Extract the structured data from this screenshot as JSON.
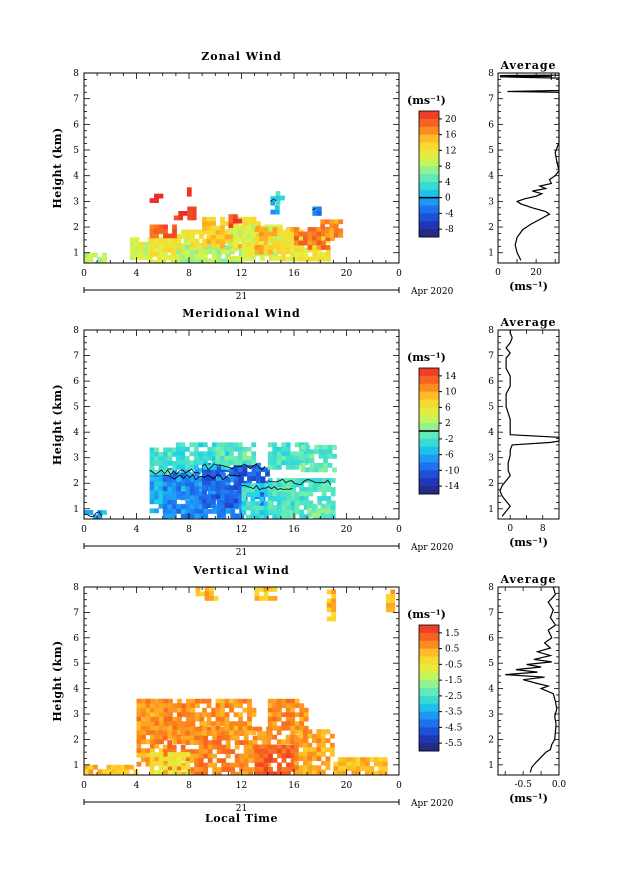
{
  "figure": {
    "date_label": "Apr 2020",
    "day_label": "21",
    "xlabel": "Local Time"
  },
  "chart_data": [
    {
      "type": "heatmap",
      "title": "Zonal Wind",
      "ylabel": "Height (km)",
      "xticks": [
        "0",
        "4",
        "8",
        "12",
        "16",
        "20",
        "0"
      ],
      "xlim": [
        0,
        24
      ],
      "ylim": [
        0.6,
        8
      ],
      "yticks": [
        "1",
        "2",
        "3",
        "4",
        "5",
        "6",
        "7",
        "8"
      ],
      "colorbar": {
        "unit": "(ms⁻¹)",
        "ticks": [
          "20",
          "16",
          "12",
          "8",
          "4",
          "0",
          "-4",
          "-8"
        ],
        "vmin": -10,
        "vmax": 22,
        "contour_level": 0
      },
      "profile": {
        "title": "Average",
        "xlabel": "(ms⁻¹)",
        "xticks": [
          "0",
          "20"
        ],
        "xlim": [
          0,
          32
        ],
        "points": [
          [
            12,
            0.7
          ],
          [
            10,
            1.0
          ],
          [
            9,
            1.3
          ],
          [
            10,
            1.6
          ],
          [
            13,
            1.9
          ],
          [
            17,
            2.1
          ],
          [
            22,
            2.3
          ],
          [
            27,
            2.5
          ],
          [
            25,
            2.6
          ],
          [
            18,
            2.75
          ],
          [
            12,
            2.9
          ],
          [
            10,
            3.0
          ],
          [
            14,
            3.1
          ],
          [
            20,
            3.2
          ],
          [
            23,
            3.3
          ],
          [
            18,
            3.4
          ],
          [
            25,
            3.5
          ],
          [
            22,
            3.6
          ],
          [
            28,
            3.7
          ],
          [
            27,
            3.85
          ],
          [
            30,
            4.0
          ],
          [
            32,
            4.2
          ],
          [
            31,
            4.5
          ],
          [
            30,
            4.9
          ],
          [
            32,
            5.3
          ],
          [
            32,
            6.5
          ],
          [
            32,
            7.25
          ],
          [
            5,
            7.28
          ],
          [
            32,
            7.32
          ],
          [
            32,
            7.8
          ],
          [
            1,
            7.85
          ],
          [
            28,
            7.87
          ],
          [
            1,
            7.9
          ],
          [
            32,
            7.92
          ],
          [
            32,
            8.0
          ]
        ],
        "markers": [
          {
            "x": 28,
            "y": 7.85
          }
        ]
      },
      "regions": [
        {
          "x": [
            0,
            1.5
          ],
          "y": [
            0.6,
            1.0
          ],
          "v": 8
        },
        {
          "x": [
            3.5,
            8
          ],
          "y": [
            0.6,
            1.6
          ],
          "v": 10
        },
        {
          "x": [
            5,
            11
          ],
          "y": [
            1.0,
            1.9
          ],
          "v": 12
        },
        {
          "x": [
            7,
            12
          ],
          "y": [
            0.6,
            1.3
          ],
          "v": 8
        },
        {
          "x": [
            9,
            13.5
          ],
          "y": [
            1.2,
            2.4
          ],
          "v": 14
        },
        {
          "x": [
            11,
            15
          ],
          "y": [
            0.8,
            2.1
          ],
          "v": 10
        },
        {
          "x": [
            13,
            16.5
          ],
          "y": [
            1.0,
            2.0
          ],
          "v": 15
        },
        {
          "x": [
            15,
            18.5
          ],
          "y": [
            0.8,
            1.9
          ],
          "v": 12
        },
        {
          "x": [
            16,
            19
          ],
          "y": [
            1.2,
            2.0
          ],
          "v": 18
        },
        {
          "x": [
            18,
            19.5
          ],
          "y": [
            1.6,
            2.3
          ],
          "v": 17
        },
        {
          "x": [
            5,
            7
          ],
          "y": [
            1.7,
            2.1
          ],
          "v": 19
        },
        {
          "x": [
            6.5,
            8.5
          ],
          "y": [
            2.3,
            2.8
          ],
          "v": 22
        },
        {
          "x": [
            5,
            6
          ],
          "y": [
            3.0,
            3.3
          ],
          "v": 22
        },
        {
          "x": [
            7.5,
            8
          ],
          "y": [
            3.35,
            3.55
          ],
          "v": 22
        },
        {
          "x": [
            11,
            12
          ],
          "y": [
            2.1,
            2.5
          ],
          "v": 20
        },
        {
          "x": [
            14.2,
            14.7
          ],
          "y": [
            2.5,
            3.2
          ],
          "v": 0
        },
        {
          "x": [
            17.4,
            17.8
          ],
          "y": [
            2.5,
            2.8
          ],
          "v": -3
        },
        {
          "x": [
            14.6,
            15
          ],
          "y": [
            3.0,
            3.4
          ],
          "v": 3
        }
      ]
    },
    {
      "type": "heatmap",
      "title": "Meridional Wind",
      "ylabel": "Height (km)",
      "xticks": [
        "0",
        "4",
        "8",
        "12",
        "16",
        "20",
        "0"
      ],
      "xlim": [
        0,
        24
      ],
      "ylim": [
        0.6,
        8
      ],
      "yticks": [
        "1",
        "2",
        "3",
        "4",
        "5",
        "6",
        "7",
        "8"
      ],
      "colorbar": {
        "unit": "(ms⁻¹)",
        "ticks": [
          "14",
          "10",
          "6",
          "2",
          "-2",
          "-6",
          "-10",
          "-14"
        ],
        "vmin": -16,
        "vmax": 16,
        "contour_level": 0
      },
      "profile": {
        "title": "Average",
        "xlabel": "(ms⁻¹)",
        "xticks": [
          "0",
          "8"
        ],
        "xlim": [
          -3,
          12
        ],
        "points": [
          [
            -2,
            0.7
          ],
          [
            -1,
            0.9
          ],
          [
            0,
            1.1
          ],
          [
            -1,
            1.3
          ],
          [
            -2,
            1.5
          ],
          [
            -2.5,
            1.7
          ],
          [
            -2,
            1.9
          ],
          [
            -1,
            2.1
          ],
          [
            0,
            2.3
          ],
          [
            -0.5,
            2.5
          ],
          [
            -0.5,
            2.8
          ],
          [
            0,
            3.1
          ],
          [
            0,
            3.3
          ],
          [
            0.5,
            3.5
          ],
          [
            10,
            3.6
          ],
          [
            12,
            3.65
          ],
          [
            12,
            3.8
          ],
          [
            0,
            3.9
          ],
          [
            0,
            4.5
          ],
          [
            -1,
            5.0
          ],
          [
            -1,
            5.5
          ],
          [
            0,
            5.8
          ],
          [
            0,
            6.2
          ],
          [
            -1,
            6.5
          ],
          [
            -1,
            6.9
          ],
          [
            0,
            7.1
          ],
          [
            -1,
            7.3
          ],
          [
            0,
            7.5
          ],
          [
            0.5,
            7.7
          ],
          [
            0,
            7.9
          ],
          [
            0,
            8.0
          ]
        ],
        "markers": []
      },
      "regions": [
        {
          "x": [
            0,
            1.5
          ],
          "y": [
            0.6,
            0.95
          ],
          "v": -6
        },
        {
          "x": [
            5,
            9
          ],
          "y": [
            1.0,
            2.6
          ],
          "v": -6
        },
        {
          "x": [
            6,
            12
          ],
          "y": [
            0.6,
            2.4
          ],
          "v": -8
        },
        {
          "x": [
            9,
            14
          ],
          "y": [
            1.2,
            2.8
          ],
          "v": -10
        },
        {
          "x": [
            12,
            16
          ],
          "y": [
            0.6,
            2.0
          ],
          "v": -3
        },
        {
          "x": [
            14,
            19
          ],
          "y": [
            0.6,
            2.2
          ],
          "v": -2
        },
        {
          "x": [
            5,
            7
          ],
          "y": [
            2.4,
            3.4
          ],
          "v": -2
        },
        {
          "x": [
            7,
            11
          ],
          "y": [
            2.6,
            3.6
          ],
          "v": -3
        },
        {
          "x": [
            10,
            13
          ],
          "y": [
            2.8,
            3.6
          ],
          "v": -1
        },
        {
          "x": [
            14,
            17
          ],
          "y": [
            2.6,
            3.6
          ],
          "v": -2
        },
        {
          "x": [
            16.5,
            19
          ],
          "y": [
            2.5,
            3.5
          ],
          "v": -1
        },
        {
          "x": [
            17,
            18.5
          ],
          "y": [
            0.7,
            1.2
          ],
          "v": 0
        }
      ]
    },
    {
      "type": "heatmap",
      "title": "Vertical Wind",
      "ylabel": "Height (km)",
      "xticks": [
        "0",
        "4",
        "8",
        "12",
        "16",
        "20",
        "0"
      ],
      "xlim": [
        0,
        24
      ],
      "ylim": [
        0.6,
        8
      ],
      "yticks": [
        "1",
        "2",
        "3",
        "4",
        "5",
        "6",
        "7",
        "8"
      ],
      "colorbar": {
        "unit": "(ms⁻¹)",
        "ticks": [
          "1.5",
          "0.5",
          "-0.5",
          "-1.5",
          "-2.5",
          "-3.5",
          "-4.5",
          "-5.5"
        ],
        "vmin": -6,
        "vmax": 2,
        "contour_level": null
      },
      "profile": {
        "title": "Average",
        "xlabel": "(ms⁻¹)",
        "xticks": [
          "-0.5",
          "0.0"
        ],
        "xlim": [
          -0.85,
          0.0
        ],
        "points": [
          [
            -0.4,
            0.7
          ],
          [
            -0.38,
            0.9
          ],
          [
            -0.32,
            1.1
          ],
          [
            -0.25,
            1.3
          ],
          [
            -0.18,
            1.5
          ],
          [
            -0.12,
            1.6
          ],
          [
            -0.1,
            1.8
          ],
          [
            -0.06,
            2.0
          ],
          [
            -0.05,
            2.3
          ],
          [
            -0.04,
            2.6
          ],
          [
            -0.06,
            2.9
          ],
          [
            -0.03,
            3.2
          ],
          [
            -0.05,
            3.5
          ],
          [
            -0.08,
            3.8
          ],
          [
            -0.25,
            4.0
          ],
          [
            -0.15,
            4.1
          ],
          [
            -0.3,
            4.2
          ],
          [
            -0.5,
            4.35
          ],
          [
            -0.2,
            4.45
          ],
          [
            -0.75,
            4.55
          ],
          [
            -0.3,
            4.65
          ],
          [
            -0.6,
            4.75
          ],
          [
            -0.25,
            4.85
          ],
          [
            -0.45,
            4.95
          ],
          [
            -0.1,
            5.05
          ],
          [
            -0.35,
            5.15
          ],
          [
            -0.12,
            5.3
          ],
          [
            -0.3,
            5.45
          ],
          [
            -0.12,
            5.6
          ],
          [
            -0.2,
            5.8
          ],
          [
            -0.1,
            6.0
          ],
          [
            -0.15,
            6.3
          ],
          [
            -0.05,
            6.5
          ],
          [
            -0.12,
            6.8
          ],
          [
            -0.08,
            7.1
          ],
          [
            -0.15,
            7.4
          ],
          [
            -0.05,
            7.7
          ],
          [
            -0.08,
            8.0
          ]
        ],
        "markers": []
      },
      "regions": [
        {
          "x": [
            0,
            4
          ],
          "y": [
            0.6,
            1.0
          ],
          "v": 0.2
        },
        {
          "x": [
            4,
            6
          ],
          "y": [
            1.0,
            3.6
          ],
          "v": 0.5
        },
        {
          "x": [
            4,
            9
          ],
          "y": [
            2.0,
            3.6
          ],
          "v": 0.7
        },
        {
          "x": [
            6,
            14
          ],
          "y": [
            0.6,
            2.5
          ],
          "v": 0.8
        },
        {
          "x": [
            9,
            13
          ],
          "y": [
            2.2,
            3.6
          ],
          "v": 0.6
        },
        {
          "x": [
            13,
            16
          ],
          "y": [
            0.6,
            1.8
          ],
          "v": 1.3
        },
        {
          "x": [
            14,
            17
          ],
          "y": [
            2.0,
            3.6
          ],
          "v": 0.7
        },
        {
          "x": [
            16,
            19
          ],
          "y": [
            0.6,
            2.4
          ],
          "v": 0.5
        },
        {
          "x": [
            5,
            8
          ],
          "y": [
            0.7,
            1.5
          ],
          "v": -0.6
        },
        {
          "x": [
            19,
            23
          ],
          "y": [
            0.6,
            1.3
          ],
          "v": 0.2
        },
        {
          "x": [
            8.5,
            10
          ],
          "y": [
            7.6,
            8.0
          ],
          "v": 0.2
        },
        {
          "x": [
            13,
            14.5
          ],
          "y": [
            7.6,
            8.0
          ],
          "v": 0.2
        },
        {
          "x": [
            18.5,
            19
          ],
          "y": [
            6.8,
            7.9
          ],
          "v": 0.2
        },
        {
          "x": [
            23,
            23.6
          ],
          "y": [
            7.1,
            7.9
          ],
          "v": 0.2
        }
      ]
    }
  ]
}
